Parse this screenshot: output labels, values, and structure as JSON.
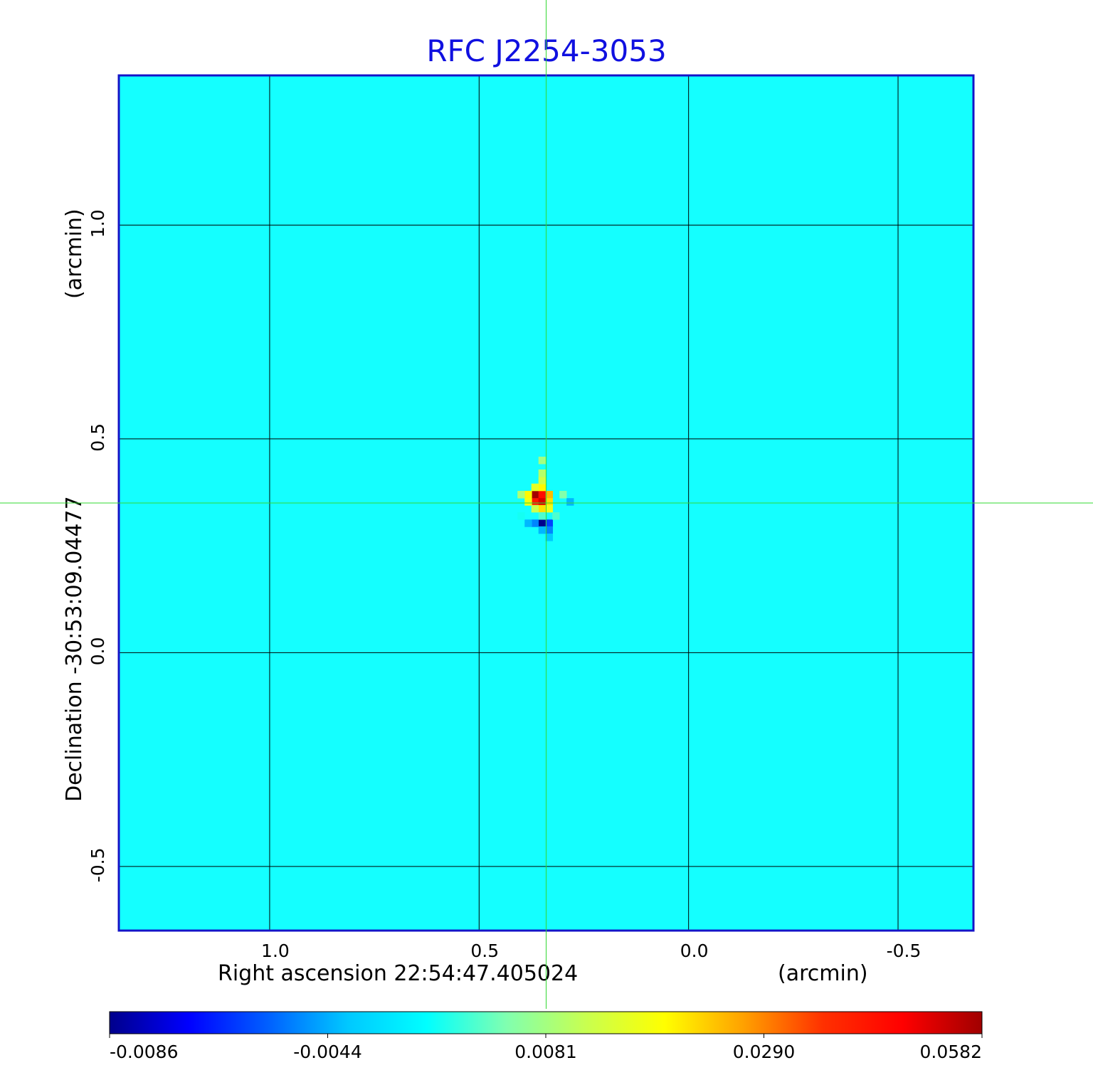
{
  "chart_data": {
    "type": "heatmap",
    "title": "RFC J2254-3053",
    "x_axis": {
      "label": "Right ascension  22:54:47.405024",
      "unit_label": "(arcmin)",
      "ticks": [
        1.0,
        0.5,
        0.0,
        -0.5
      ],
      "tick_labels": [
        "1.0",
        "0.5",
        "0.0",
        "-0.5"
      ],
      "range": [
        1.36,
        -0.68
      ]
    },
    "y_axis": {
      "label": "Declination  -30:53:09.04477",
      "unit_label": "(arcmin)",
      "ticks": [
        1.0,
        0.5,
        0.0,
        -0.5
      ],
      "tick_labels": [
        "1.0",
        "0.5",
        "0.0",
        "-0.5"
      ],
      "range": [
        -0.65,
        1.35
      ]
    },
    "grid": true,
    "crosshair": {
      "x": 0.34,
      "y": 0.35,
      "color": "#32d832"
    },
    "background_value": 0.0,
    "source_pixels": [
      {
        "x": 0.367,
        "y": 0.37,
        "value": 0.058
      },
      {
        "x": 0.35,
        "y": 0.37,
        "value": 0.045
      },
      {
        "x": 0.333,
        "y": 0.37,
        "value": 0.025
      },
      {
        "x": 0.383,
        "y": 0.37,
        "value": 0.02
      },
      {
        "x": 0.367,
        "y": 0.353,
        "value": 0.043
      },
      {
        "x": 0.35,
        "y": 0.353,
        "value": 0.052
      },
      {
        "x": 0.333,
        "y": 0.353,
        "value": 0.022
      },
      {
        "x": 0.383,
        "y": 0.353,
        "value": 0.018
      },
      {
        "x": 0.35,
        "y": 0.337,
        "value": 0.022
      },
      {
        "x": 0.333,
        "y": 0.337,
        "value": 0.017
      },
      {
        "x": 0.367,
        "y": 0.337,
        "value": 0.012
      },
      {
        "x": 0.35,
        "y": 0.387,
        "value": 0.02
      },
      {
        "x": 0.367,
        "y": 0.387,
        "value": 0.016
      },
      {
        "x": 0.35,
        "y": 0.403,
        "value": 0.013
      },
      {
        "x": 0.35,
        "y": 0.42,
        "value": 0.01
      },
      {
        "x": 0.35,
        "y": 0.45,
        "value": 0.008
      },
      {
        "x": 0.4,
        "y": 0.37,
        "value": 0.009
      },
      {
        "x": 0.3,
        "y": 0.37,
        "value": 0.006
      },
      {
        "x": 0.35,
        "y": 0.303,
        "value": -0.0086
      },
      {
        "x": 0.333,
        "y": 0.303,
        "value": -0.006
      },
      {
        "x": 0.367,
        "y": 0.303,
        "value": -0.005
      },
      {
        "x": 0.383,
        "y": 0.303,
        "value": -0.004
      },
      {
        "x": 0.333,
        "y": 0.287,
        "value": -0.005
      },
      {
        "x": 0.35,
        "y": 0.287,
        "value": -0.004
      },
      {
        "x": 0.333,
        "y": 0.27,
        "value": -0.003
      },
      {
        "x": 0.283,
        "y": 0.353,
        "value": -0.004
      },
      {
        "x": 0.35,
        "y": 0.32,
        "value": 0.004
      },
      {
        "x": 0.317,
        "y": 0.32,
        "value": 0.004
      },
      {
        "x": 0.4,
        "y": 0.32,
        "value": 0.002
      }
    ],
    "colorbar": {
      "colormap": "jet",
      "range": [
        -0.0086,
        0.0582
      ],
      "tick_labels": [
        "-0.0086",
        "-0.0044",
        "0.0081",
        "0.0290",
        "0.0582"
      ],
      "stops": [
        "#00008b",
        "#0000ff",
        "#0060ff",
        "#00c8ff",
        "#00ffff",
        "#80ffb0",
        "#c8ff50",
        "#ffff00",
        "#ffa000",
        "#ff3000",
        "#ff0000",
        "#a00000"
      ]
    },
    "colors": {
      "title": "#1010e0",
      "frame": "#1414c8",
      "background": "#14ffff"
    }
  }
}
